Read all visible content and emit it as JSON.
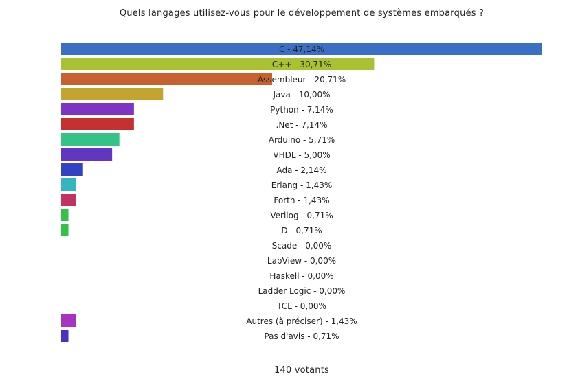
{
  "chart_data": {
    "type": "bar",
    "orientation": "horizontal",
    "title": "Quels langages utilisez-vous pour le développement de systèmes embarqués ?",
    "xlim": [
      0,
      47.14
    ],
    "grid": false,
    "legend": "none",
    "categories": [
      "C",
      "C++",
      "Assembleur",
      "Java",
      "Python",
      ".Net",
      "Arduino",
      "VHDL",
      "Ada",
      "Erlang",
      "Forth",
      "Verilog",
      "D",
      "Scade",
      "LabView",
      "Haskell",
      "Ladder Logic",
      "TCL",
      "Autres (à préciser)",
      "Pas d'avis"
    ],
    "values": [
      47.14,
      30.71,
      20.71,
      10.0,
      7.14,
      7.14,
      5.71,
      5.0,
      2.14,
      1.43,
      1.43,
      0.71,
      0.71,
      0.0,
      0.0,
      0.0,
      0.0,
      0.0,
      1.43,
      0.71
    ],
    "labels": [
      "C - 47,14%",
      "C++ - 30,71%",
      "Assembleur - 20,71%",
      "Java - 10,00%",
      "Python - 7,14%",
      ".Net - 7,14%",
      "Arduino - 5,71%",
      "VHDL - 5,00%",
      "Ada - 2,14%",
      "Erlang - 1,43%",
      "Forth - 1,43%",
      "Verilog - 0,71%",
      "D - 0,71%",
      "Scade - 0,00%",
      "LabView - 0,00%",
      "Haskell - 0,00%",
      "Ladder Logic - 0,00%",
      "TCL - 0,00%",
      "Autres (à préciser) - 1,43%",
      "Pas d'avis - 0,71%"
    ],
    "colors": [
      "#3b6fc6",
      "#a9c232",
      "#c8602f",
      "#c3a52d",
      "#7f33c4",
      "#c4322f",
      "#34c286",
      "#6236c2",
      "#3342c0",
      "#33b5c2",
      "#c23362",
      "#33c246",
      "#33c246",
      "#3b6fc6",
      "#3b6fc6",
      "#3b6fc6",
      "#3b6fc6",
      "#3b6fc6",
      "#a833c2",
      "#4633c2"
    ],
    "footer": "140 votants"
  }
}
